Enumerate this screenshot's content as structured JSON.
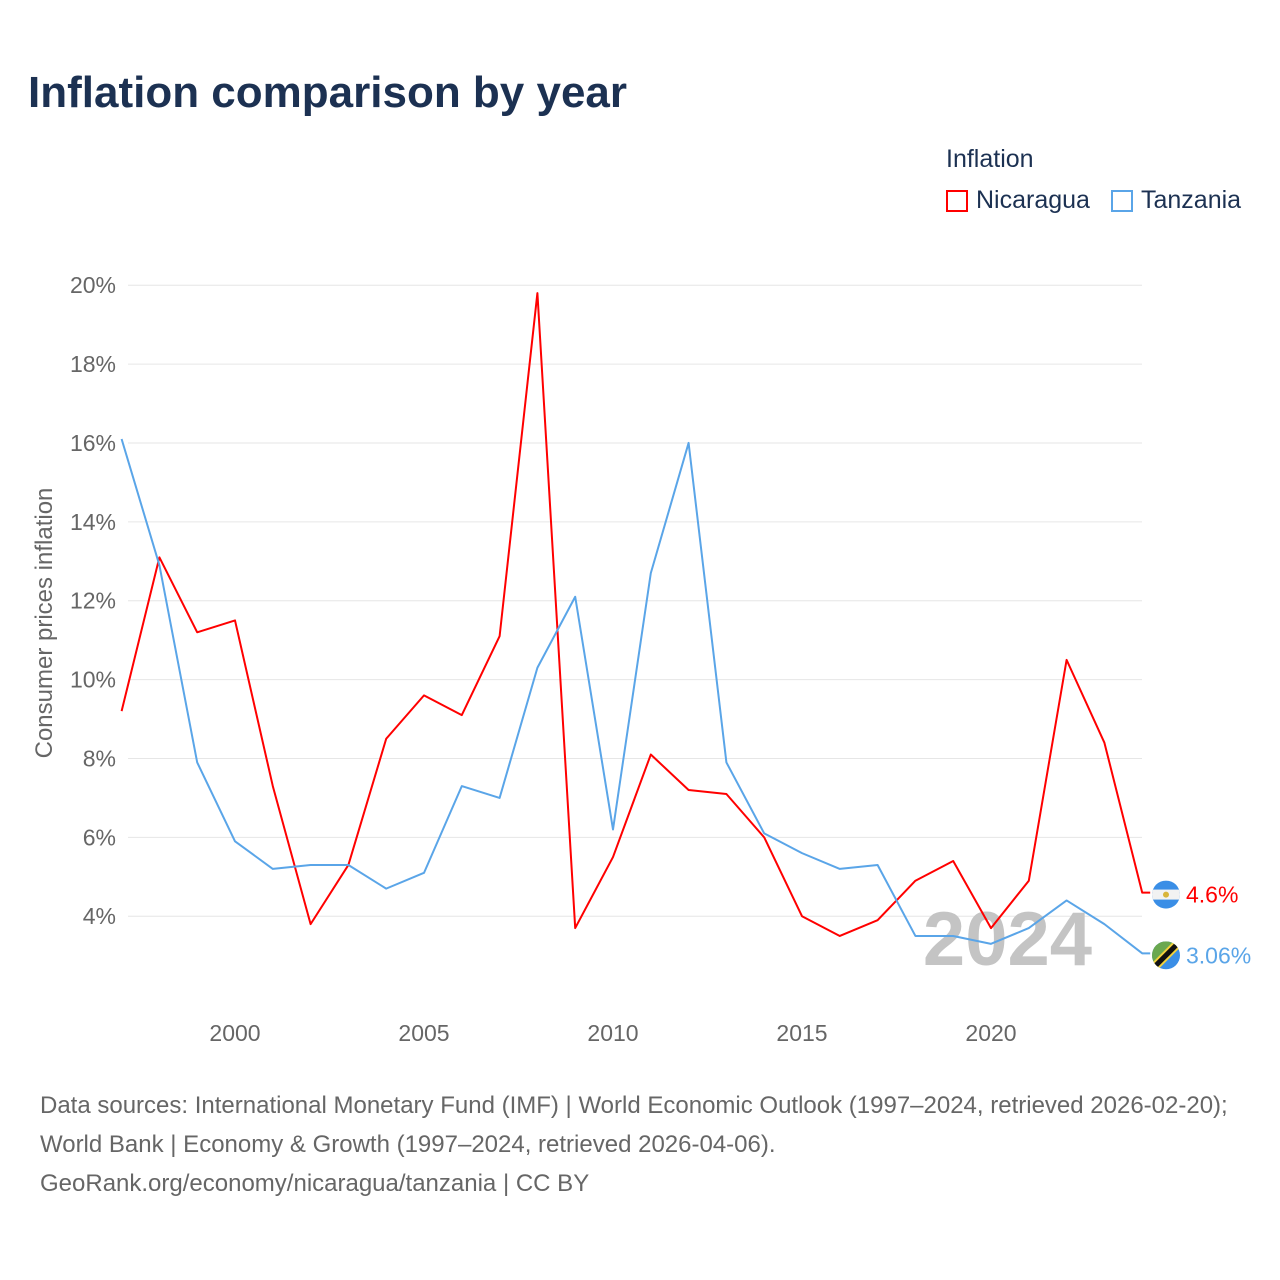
{
  "chart_data": {
    "type": "line",
    "title": "Inflation comparison by year",
    "ylabel": "Consumer prices inflation",
    "xlabel": "",
    "xlim": [
      1997,
      2024
    ],
    "ylim": [
      2.5,
      20.5
    ],
    "x_ticks": [
      2000,
      2005,
      2010,
      2015,
      2020
    ],
    "x_tick_labels": [
      "2000",
      "2005",
      "2010",
      "2015",
      "2020"
    ],
    "y_ticks": [
      4,
      6,
      8,
      10,
      12,
      14,
      16,
      18,
      20
    ],
    "y_tick_labels": [
      "4%",
      "6%",
      "8%",
      "10%",
      "12%",
      "14%",
      "16%",
      "18%",
      "20%"
    ],
    "grid": true,
    "legend_title": "Inflation",
    "legend_position": "top-right",
    "watermark_year": "2024",
    "x": [
      1997,
      1998,
      1999,
      2000,
      2001,
      2002,
      2003,
      2004,
      2005,
      2006,
      2007,
      2008,
      2009,
      2010,
      2011,
      2012,
      2013,
      2014,
      2015,
      2016,
      2017,
      2018,
      2019,
      2020,
      2021,
      2022,
      2023,
      2024
    ],
    "series": [
      {
        "name": "Nicaragua",
        "color": "#ff0000",
        "end_label": "4.6%",
        "flag": "nicaragua-flag",
        "values": [
          9.2,
          13.1,
          11.2,
          11.5,
          7.3,
          3.8,
          5.3,
          8.5,
          9.6,
          9.1,
          11.1,
          19.8,
          3.7,
          5.5,
          8.1,
          7.2,
          7.1,
          6.0,
          4.0,
          3.5,
          3.9,
          4.9,
          5.4,
          3.7,
          4.9,
          10.5,
          8.4,
          4.6
        ]
      },
      {
        "name": "Tanzania",
        "color": "#5aa5e8",
        "end_label": "3.06%",
        "flag": "tanzania-flag",
        "values": [
          16.1,
          12.9,
          7.9,
          5.9,
          5.2,
          5.3,
          5.3,
          4.7,
          5.1,
          7.3,
          7.0,
          10.3,
          12.1,
          6.2,
          12.7,
          16.0,
          7.9,
          6.1,
          5.6,
          5.2,
          5.3,
          3.5,
          3.5,
          3.3,
          3.7,
          4.4,
          3.8,
          3.06
        ]
      }
    ]
  },
  "footer": {
    "sources": "Data sources: International Monetary Fund (IMF) | World Economic Outlook (1997–2024, retrieved 2026-02-20); World Bank | Economy & Growth (1997–2024, retrieved 2026-04-06).",
    "credit": "GeoRank.org/economy/nicaragua/tanzania | CC BY"
  }
}
